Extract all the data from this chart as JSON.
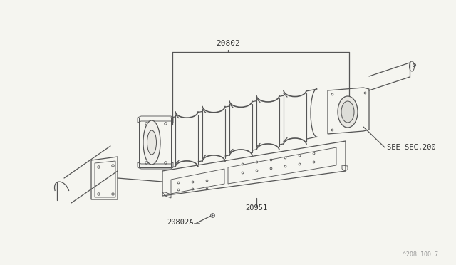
{
  "background_color": "#f5f5f0",
  "line_color": "#555555",
  "text_color": "#333333",
  "figure_width": 6.4,
  "figure_height": 3.72,
  "dpi": 100,
  "watermark_text": "^208 100 7",
  "label_20802": "20802",
  "label_20951": "20951",
  "label_20802A": "20802A",
  "label_see": "SEE SEC.200"
}
